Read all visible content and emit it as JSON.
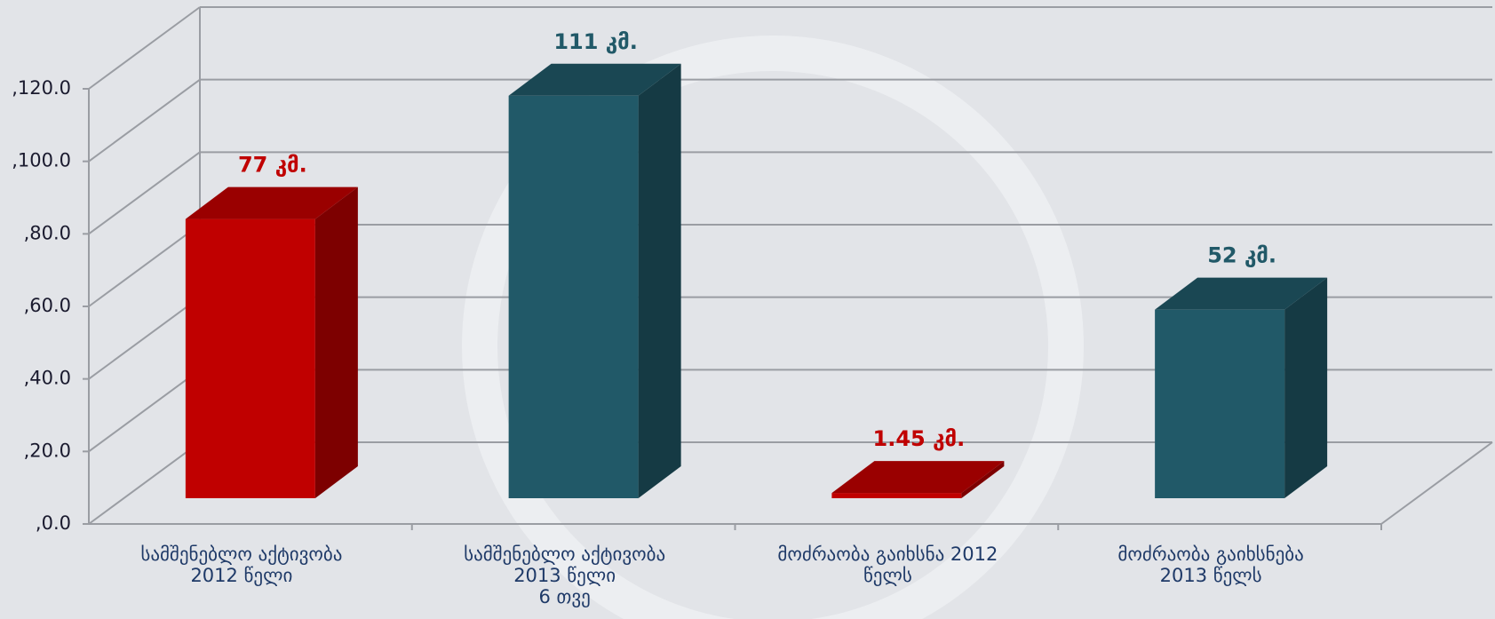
{
  "chart_data": {
    "type": "bar3d",
    "categories": [
      "სამშენებლო აქტივობა\n2012 წელი",
      "სამშენებლო აქტივობა\n2013 წელი\n6 თვე",
      "მოძრაობა გაიხსნა 2012\nწელს",
      "მოძრაობა გაიხსნება\n2013 წელს"
    ],
    "values": [
      77,
      111,
      1.45,
      52
    ],
    "value_labels": [
      "77 კმ.",
      "111 კმ.",
      "1.45 კმ.",
      "52 კმ."
    ],
    "colors": [
      "#c00000",
      "#215968",
      "#c00000",
      "#215968"
    ],
    "ylim": [
      0,
      120
    ],
    "yticks": [
      {
        "value": 0,
        "label": ",0.0"
      },
      {
        "value": 20,
        "label": ",20.0"
      },
      {
        "value": 40,
        "label": ",40.0"
      },
      {
        "value": 60,
        "label": ",60.0"
      },
      {
        "value": 80,
        "label": ",80.0"
      },
      {
        "value": 100,
        "label": ",100.0"
      },
      {
        "value": 120,
        "label": ",120.0"
      }
    ],
    "grid": true
  }
}
